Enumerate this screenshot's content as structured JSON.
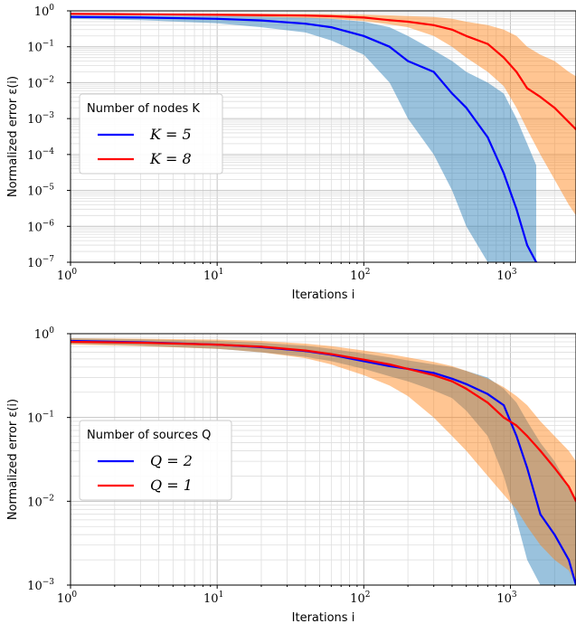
{
  "chart_data": [
    {
      "type": "line",
      "title": "",
      "xlabel": "Iterations i",
      "ylabel": "Normalized error ε(i)",
      "xscale": "log",
      "yscale": "log",
      "xlim": [
        1,
        2800
      ],
      "ylim": [
        1e-07,
        1
      ],
      "x_ticks": [
        {
          "v": 1,
          "base": "10",
          "exp": "0"
        },
        {
          "v": 10,
          "base": "10",
          "exp": "1"
        },
        {
          "v": 100,
          "base": "10",
          "exp": "2"
        },
        {
          "v": 1000,
          "base": "10",
          "exp": "3"
        }
      ],
      "y_ticks": [
        {
          "v": 1,
          "base": "10",
          "exp": "0"
        },
        {
          "v": 0.1,
          "base": "10",
          "exp": "−1"
        },
        {
          "v": 0.01,
          "base": "10",
          "exp": "−2"
        },
        {
          "v": 0.001,
          "base": "10",
          "exp": "−3"
        },
        {
          "v": 0.0001,
          "base": "10",
          "exp": "−4"
        },
        {
          "v": 1e-05,
          "base": "10",
          "exp": "−5"
        },
        {
          "v": 1e-06,
          "base": "10",
          "exp": "−6"
        },
        {
          "v": 1e-07,
          "base": "10",
          "exp": "−7"
        }
      ],
      "grid": true,
      "legend_title": "Number of nodes K",
      "legend_position": "center-left",
      "series": [
        {
          "name": "K = 5",
          "color": "#0000ff",
          "band_color": "#1f77b4",
          "x": [
            1,
            3,
            10,
            20,
            40,
            60,
            100,
            150,
            200,
            300,
            400,
            500,
            700,
            900,
            1100,
            1300,
            1500
          ],
          "y": [
            0.68,
            0.65,
            0.6,
            0.54,
            0.44,
            0.35,
            0.2,
            0.1,
            0.04,
            0.02,
            0.005,
            0.002,
            0.0003,
            3e-05,
            3e-06,
            3e-07,
            1e-07
          ],
          "lower": [
            0.6,
            0.55,
            0.45,
            0.35,
            0.25,
            0.15,
            0.06,
            0.01,
            0.001,
            0.0001,
            1e-05,
            1e-06,
            1e-07,
            1e-07,
            1e-07,
            1e-07,
            1e-07
          ],
          "upper": [
            0.75,
            0.74,
            0.72,
            0.7,
            0.65,
            0.6,
            0.5,
            0.35,
            0.2,
            0.08,
            0.04,
            0.02,
            0.01,
            0.005,
            0.001,
            0.0002,
            5e-05
          ]
        },
        {
          "name": "K = 8",
          "color": "#ff0000",
          "band_color": "#ff7f0e",
          "x": [
            1,
            3,
            10,
            20,
            40,
            60,
            100,
            150,
            200,
            300,
            400,
            500,
            700,
            900,
            1100,
            1300,
            1600,
            2000,
            2500,
            2800
          ],
          "y": [
            0.82,
            0.8,
            0.78,
            0.76,
            0.74,
            0.71,
            0.65,
            0.55,
            0.5,
            0.4,
            0.3,
            0.2,
            0.12,
            0.05,
            0.02,
            0.007,
            0.004,
            0.002,
            0.0008,
            0.0005
          ],
          "lower": [
            0.78,
            0.76,
            0.72,
            0.68,
            0.64,
            0.6,
            0.52,
            0.42,
            0.35,
            0.2,
            0.1,
            0.05,
            0.02,
            0.008,
            0.002,
            0.0005,
            0.0001,
            2e-05,
            4e-06,
            2e-06
          ],
          "upper": [
            0.86,
            0.85,
            0.84,
            0.83,
            0.82,
            0.8,
            0.78,
            0.75,
            0.72,
            0.68,
            0.6,
            0.5,
            0.4,
            0.3,
            0.2,
            0.1,
            0.06,
            0.04,
            0.02,
            0.015
          ]
        }
      ]
    },
    {
      "type": "line",
      "title": "",
      "xlabel": "Iterations i",
      "ylabel": "Normalized error ε(i)",
      "xscale": "log",
      "yscale": "log",
      "xlim": [
        1,
        2800
      ],
      "ylim": [
        0.001,
        1
      ],
      "x_ticks": [
        {
          "v": 1,
          "base": "10",
          "exp": "0"
        },
        {
          "v": 10,
          "base": "10",
          "exp": "1"
        },
        {
          "v": 100,
          "base": "10",
          "exp": "2"
        },
        {
          "v": 1000,
          "base": "10",
          "exp": "3"
        }
      ],
      "y_ticks": [
        {
          "v": 1,
          "base": "10",
          "exp": "0"
        },
        {
          "v": 0.1,
          "base": "10",
          "exp": "−1"
        },
        {
          "v": 0.01,
          "base": "10",
          "exp": "−2"
        },
        {
          "v": 0.001,
          "base": "10",
          "exp": "−3"
        }
      ],
      "grid": true,
      "legend_title": "Number of sources Q",
      "legend_position": "center-left",
      "series": [
        {
          "name": "Q = 2",
          "color": "#0000ff",
          "band_color": "#1f77b4",
          "x": [
            1,
            3,
            10,
            20,
            40,
            60,
            100,
            150,
            200,
            300,
            400,
            500,
            700,
            900,
            1100,
            1300,
            1600,
            2000,
            2500,
            2800
          ],
          "y": [
            0.82,
            0.79,
            0.74,
            0.69,
            0.62,
            0.56,
            0.47,
            0.41,
            0.38,
            0.34,
            0.29,
            0.25,
            0.19,
            0.14,
            0.06,
            0.025,
            0.007,
            0.004,
            0.002,
            0.001
          ],
          "lower": [
            0.76,
            0.72,
            0.66,
            0.6,
            0.53,
            0.47,
            0.38,
            0.31,
            0.27,
            0.21,
            0.17,
            0.12,
            0.06,
            0.02,
            0.006,
            0.002,
            0.001,
            0.001,
            0.001,
            0.001
          ],
          "upper": [
            0.88,
            0.86,
            0.82,
            0.78,
            0.72,
            0.66,
            0.58,
            0.52,
            0.48,
            0.43,
            0.4,
            0.36,
            0.3,
            0.22,
            0.15,
            0.09,
            0.05,
            0.03,
            0.015,
            0.01
          ]
        },
        {
          "name": "Q = 1",
          "color": "#ff0000",
          "band_color": "#ff7f0e",
          "x": [
            1,
            3,
            10,
            20,
            40,
            60,
            100,
            150,
            200,
            300,
            400,
            500,
            700,
            900,
            1100,
            1300,
            1600,
            2000,
            2500,
            2800
          ],
          "y": [
            0.8,
            0.78,
            0.74,
            0.7,
            0.63,
            0.57,
            0.49,
            0.43,
            0.38,
            0.32,
            0.27,
            0.22,
            0.15,
            0.1,
            0.08,
            0.06,
            0.04,
            0.025,
            0.015,
            0.01
          ],
          "lower": [
            0.74,
            0.71,
            0.66,
            0.6,
            0.51,
            0.43,
            0.32,
            0.24,
            0.18,
            0.1,
            0.06,
            0.04,
            0.02,
            0.012,
            0.008,
            0.005,
            0.003,
            0.002,
            0.0015,
            0.001
          ],
          "upper": [
            0.88,
            0.87,
            0.85,
            0.82,
            0.76,
            0.71,
            0.63,
            0.57,
            0.52,
            0.46,
            0.41,
            0.36,
            0.29,
            0.23,
            0.18,
            0.14,
            0.09,
            0.06,
            0.04,
            0.03
          ]
        }
      ]
    }
  ]
}
